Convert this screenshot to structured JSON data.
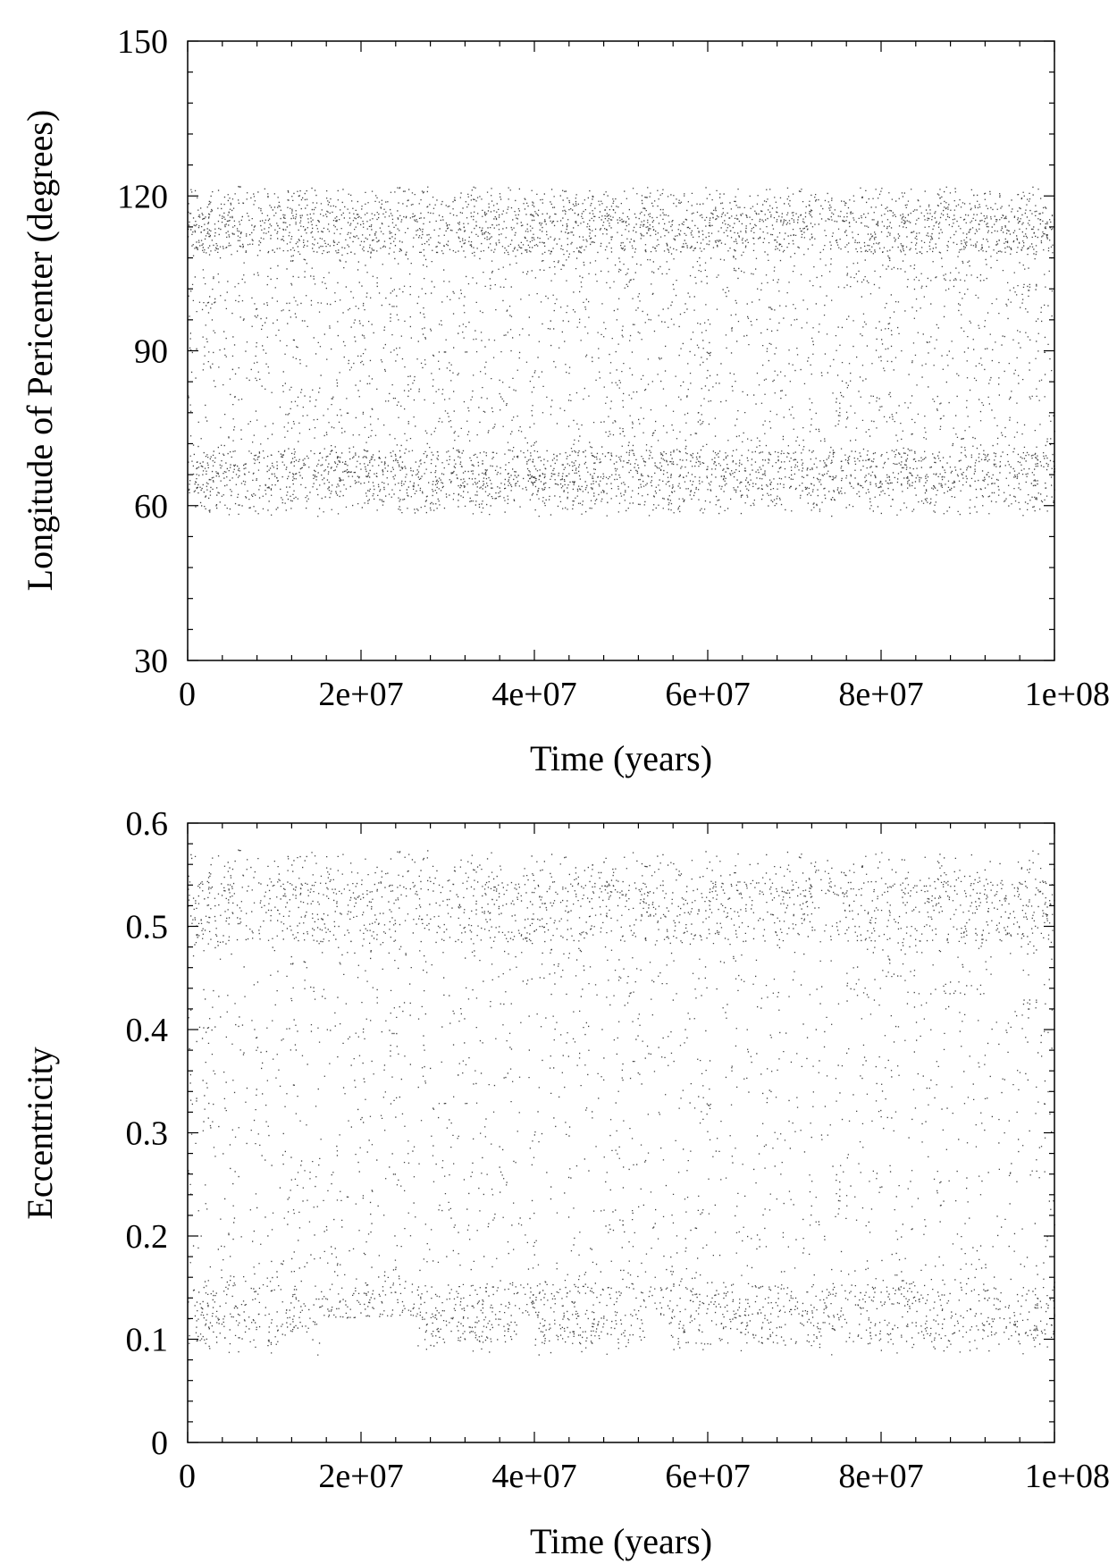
{
  "chart_data": [
    {
      "type": "scatter",
      "xlabel": "Time (years)",
      "ylabel": "Longitude of Pericenter (degrees)",
      "xlim": [
        0,
        100000000
      ],
      "ylim": [
        30,
        150
      ],
      "xticks": [
        0,
        20000000,
        40000000,
        60000000,
        80000000,
        100000000
      ],
      "xtick_labels": [
        "0",
        "2e+07",
        "4e+07",
        "6e+07",
        "8e+07",
        "1e+08"
      ],
      "yticks": [
        30,
        60,
        90,
        120,
        150
      ],
      "ytick_labels": [
        "30",
        "60",
        "90",
        "120",
        "150"
      ],
      "grid": false,
      "point_color": "#000000",
      "band": {
        "min": 58,
        "max": 122,
        "dense_low": 67,
        "dense_high": 113
      }
    },
    {
      "type": "scatter",
      "xlabel": "Time (years)",
      "ylabel": "Eccentricity",
      "xlim": [
        0,
        100000000
      ],
      "ylim": [
        0,
        0.6
      ],
      "xticks": [
        0,
        20000000,
        40000000,
        60000000,
        80000000,
        100000000
      ],
      "xtick_labels": [
        "0",
        "2e+07",
        "4e+07",
        "6e+07",
        "8e+07",
        "1e+08"
      ],
      "yticks": [
        0,
        0.1,
        0.2,
        0.3,
        0.4,
        0.5,
        0.6
      ],
      "ytick_labels": [
        "0",
        "0.1",
        "0.2",
        "0.3",
        "0.4",
        "0.5",
        "0.6"
      ],
      "grid": false,
      "point_color": "#000000",
      "band": {
        "min": 0.085,
        "max": 0.575,
        "dense_low": 0.125,
        "dense_high": 0.515
      },
      "gaps": [
        {
          "x0": 15500000,
          "x1": 26500000,
          "emin": 0.12
        },
        {
          "x0": 38000000,
          "x1": 40000000,
          "emin": 0.12
        },
        {
          "x0": 53000000,
          "x1": 55500000,
          "emin": 0.12
        }
      ]
    }
  ]
}
